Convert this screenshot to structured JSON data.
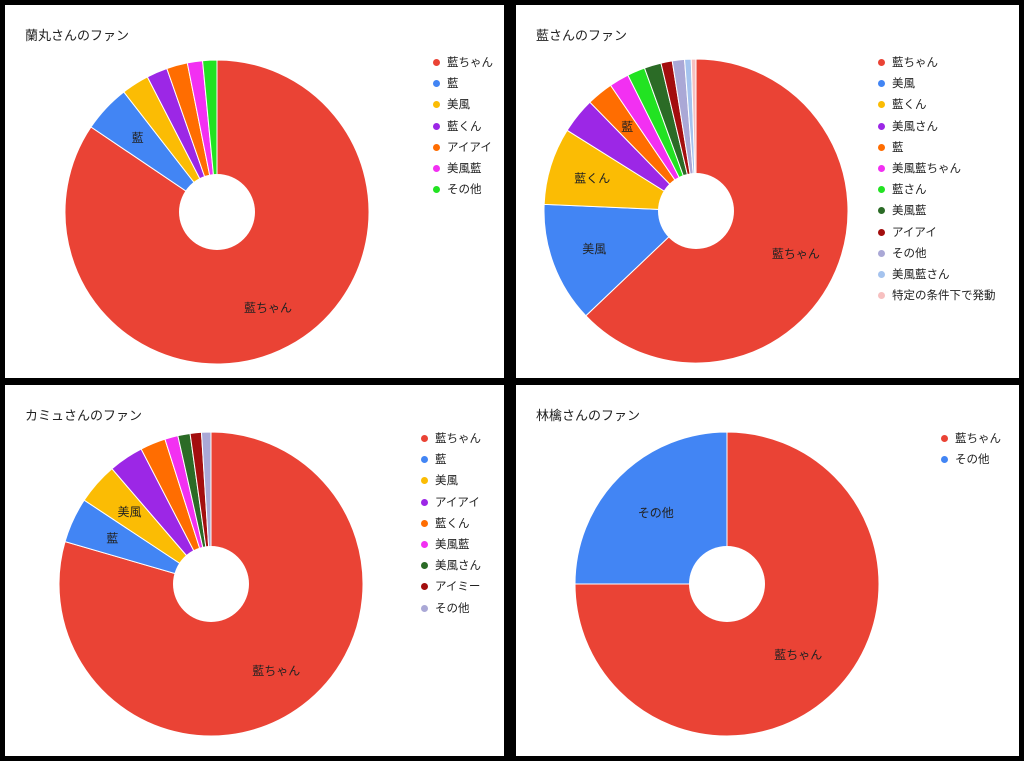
{
  "chart_data": [
    {
      "type": "pie",
      "title": "蘭丸さんのファン",
      "categories": [
        "藍ちゃん",
        "藍",
        "美風",
        "藍くん",
        "アイアイ",
        "美風藍",
        "その他"
      ],
      "values": [
        83.6,
        5.0,
        2.9,
        2.2,
        2.2,
        1.6,
        1.5
      ],
      "colors": [
        "#ea4335",
        "#4285f4",
        "#fbbc04",
        "#9c27e6",
        "#ff6d01",
        "#f230f2",
        "#22e322"
      ],
      "slice_labels": {
        "藍ちゃん": "藍ちゃん",
        "藍": "藍"
      },
      "legend": "right",
      "donut": true
    },
    {
      "type": "pie",
      "title": "藍さんのファン",
      "categories": [
        "藍ちゃん",
        "美風",
        "藍くん",
        "美風さん",
        "藍",
        "美風藍ちゃん",
        "藍さん",
        "美風藍",
        "アイアイ",
        "その他",
        "美風藍さん",
        "特定の条件下で発動"
      ],
      "values": [
        62.9,
        12.8,
        8.2,
        3.8,
        2.8,
        2.1,
        1.9,
        1.8,
        1.2,
        1.3,
        0.7,
        0.5
      ],
      "colors": [
        "#ea4335",
        "#4285f4",
        "#fbbc04",
        "#9c27e6",
        "#ff6d01",
        "#f230f2",
        "#22e322",
        "#2b6b26",
        "#a30e0e",
        "#aaa8d6",
        "#a5c3ee",
        "#f7c0c0"
      ],
      "slice_labels": {
        "藍ちゃん": "藍ちゃん",
        "美風": "美風",
        "藍くん": "藍くん",
        "藍": "藍"
      },
      "legend": "right",
      "donut": true
    },
    {
      "type": "pie",
      "title": "カミュさんのファン",
      "categories": [
        "藍ちゃん",
        "藍",
        "美風",
        "アイアイ",
        "藍くん",
        "美風藍",
        "美風さん",
        "アイミー",
        "その他"
      ],
      "values": [
        79.5,
        4.8,
        4.4,
        3.7,
        2.7,
        1.4,
        1.3,
        1.2,
        1.0
      ],
      "colors": [
        "#ea4335",
        "#4285f4",
        "#fbbc04",
        "#9c27e6",
        "#ff6d01",
        "#f230f2",
        "#2b6b26",
        "#a30e0e",
        "#aaa8d6"
      ],
      "slice_labels": {
        "藍ちゃん": "藍ちゃん",
        "藍": "藍",
        "美風": "美風"
      },
      "legend": "right",
      "donut": true
    },
    {
      "type": "pie",
      "title": "林檎さんのファン",
      "categories": [
        "藍ちゃん",
        "その他"
      ],
      "values": [
        75,
        25
      ],
      "colors": [
        "#ea4335",
        "#4285f4"
      ],
      "slice_labels": {
        "藍ちゃん": "藍ちゃん",
        "その他": "その他"
      },
      "legend": "right",
      "donut": true
    }
  ]
}
